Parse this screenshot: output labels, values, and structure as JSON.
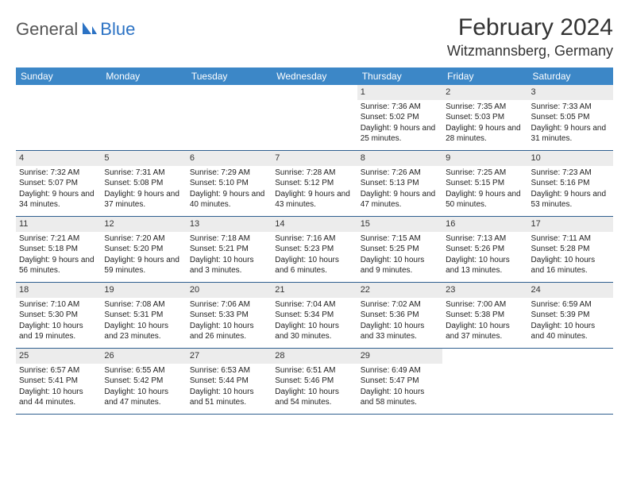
{
  "logo": {
    "text1": "General",
    "text2": "Blue"
  },
  "title": "February 2024",
  "location": "Witzmannsberg, Germany",
  "colors": {
    "header_bg": "#3c87c7",
    "daynum_bg": "#ececec",
    "week_border": "#2f5f8f",
    "text": "#222222",
    "logo_gray": "#555555",
    "logo_blue": "#2b72c4"
  },
  "day_names": [
    "Sunday",
    "Monday",
    "Tuesday",
    "Wednesday",
    "Thursday",
    "Friday",
    "Saturday"
  ],
  "weeks": [
    [
      null,
      null,
      null,
      null,
      {
        "n": "1",
        "sunrise": "7:36 AM",
        "sunset": "5:02 PM",
        "daylight": "9 hours and 25 minutes."
      },
      {
        "n": "2",
        "sunrise": "7:35 AM",
        "sunset": "5:03 PM",
        "daylight": "9 hours and 28 minutes."
      },
      {
        "n": "3",
        "sunrise": "7:33 AM",
        "sunset": "5:05 PM",
        "daylight": "9 hours and 31 minutes."
      }
    ],
    [
      {
        "n": "4",
        "sunrise": "7:32 AM",
        "sunset": "5:07 PM",
        "daylight": "9 hours and 34 minutes."
      },
      {
        "n": "5",
        "sunrise": "7:31 AM",
        "sunset": "5:08 PM",
        "daylight": "9 hours and 37 minutes."
      },
      {
        "n": "6",
        "sunrise": "7:29 AM",
        "sunset": "5:10 PM",
        "daylight": "9 hours and 40 minutes."
      },
      {
        "n": "7",
        "sunrise": "7:28 AM",
        "sunset": "5:12 PM",
        "daylight": "9 hours and 43 minutes."
      },
      {
        "n": "8",
        "sunrise": "7:26 AM",
        "sunset": "5:13 PM",
        "daylight": "9 hours and 47 minutes."
      },
      {
        "n": "9",
        "sunrise": "7:25 AM",
        "sunset": "5:15 PM",
        "daylight": "9 hours and 50 minutes."
      },
      {
        "n": "10",
        "sunrise": "7:23 AM",
        "sunset": "5:16 PM",
        "daylight": "9 hours and 53 minutes."
      }
    ],
    [
      {
        "n": "11",
        "sunrise": "7:21 AM",
        "sunset": "5:18 PM",
        "daylight": "9 hours and 56 minutes."
      },
      {
        "n": "12",
        "sunrise": "7:20 AM",
        "sunset": "5:20 PM",
        "daylight": "9 hours and 59 minutes."
      },
      {
        "n": "13",
        "sunrise": "7:18 AM",
        "sunset": "5:21 PM",
        "daylight": "10 hours and 3 minutes."
      },
      {
        "n": "14",
        "sunrise": "7:16 AM",
        "sunset": "5:23 PM",
        "daylight": "10 hours and 6 minutes."
      },
      {
        "n": "15",
        "sunrise": "7:15 AM",
        "sunset": "5:25 PM",
        "daylight": "10 hours and 9 minutes."
      },
      {
        "n": "16",
        "sunrise": "7:13 AM",
        "sunset": "5:26 PM",
        "daylight": "10 hours and 13 minutes."
      },
      {
        "n": "17",
        "sunrise": "7:11 AM",
        "sunset": "5:28 PM",
        "daylight": "10 hours and 16 minutes."
      }
    ],
    [
      {
        "n": "18",
        "sunrise": "7:10 AM",
        "sunset": "5:30 PM",
        "daylight": "10 hours and 19 minutes."
      },
      {
        "n": "19",
        "sunrise": "7:08 AM",
        "sunset": "5:31 PM",
        "daylight": "10 hours and 23 minutes."
      },
      {
        "n": "20",
        "sunrise": "7:06 AM",
        "sunset": "5:33 PM",
        "daylight": "10 hours and 26 minutes."
      },
      {
        "n": "21",
        "sunrise": "7:04 AM",
        "sunset": "5:34 PM",
        "daylight": "10 hours and 30 minutes."
      },
      {
        "n": "22",
        "sunrise": "7:02 AM",
        "sunset": "5:36 PM",
        "daylight": "10 hours and 33 minutes."
      },
      {
        "n": "23",
        "sunrise": "7:00 AM",
        "sunset": "5:38 PM",
        "daylight": "10 hours and 37 minutes."
      },
      {
        "n": "24",
        "sunrise": "6:59 AM",
        "sunset": "5:39 PM",
        "daylight": "10 hours and 40 minutes."
      }
    ],
    [
      {
        "n": "25",
        "sunrise": "6:57 AM",
        "sunset": "5:41 PM",
        "daylight": "10 hours and 44 minutes."
      },
      {
        "n": "26",
        "sunrise": "6:55 AM",
        "sunset": "5:42 PM",
        "daylight": "10 hours and 47 minutes."
      },
      {
        "n": "27",
        "sunrise": "6:53 AM",
        "sunset": "5:44 PM",
        "daylight": "10 hours and 51 minutes."
      },
      {
        "n": "28",
        "sunrise": "6:51 AM",
        "sunset": "5:46 PM",
        "daylight": "10 hours and 54 minutes."
      },
      {
        "n": "29",
        "sunrise": "6:49 AM",
        "sunset": "5:47 PM",
        "daylight": "10 hours and 58 minutes."
      },
      null,
      null
    ]
  ],
  "labels": {
    "sunrise": "Sunrise: ",
    "sunset": "Sunset: ",
    "daylight": "Daylight: "
  }
}
